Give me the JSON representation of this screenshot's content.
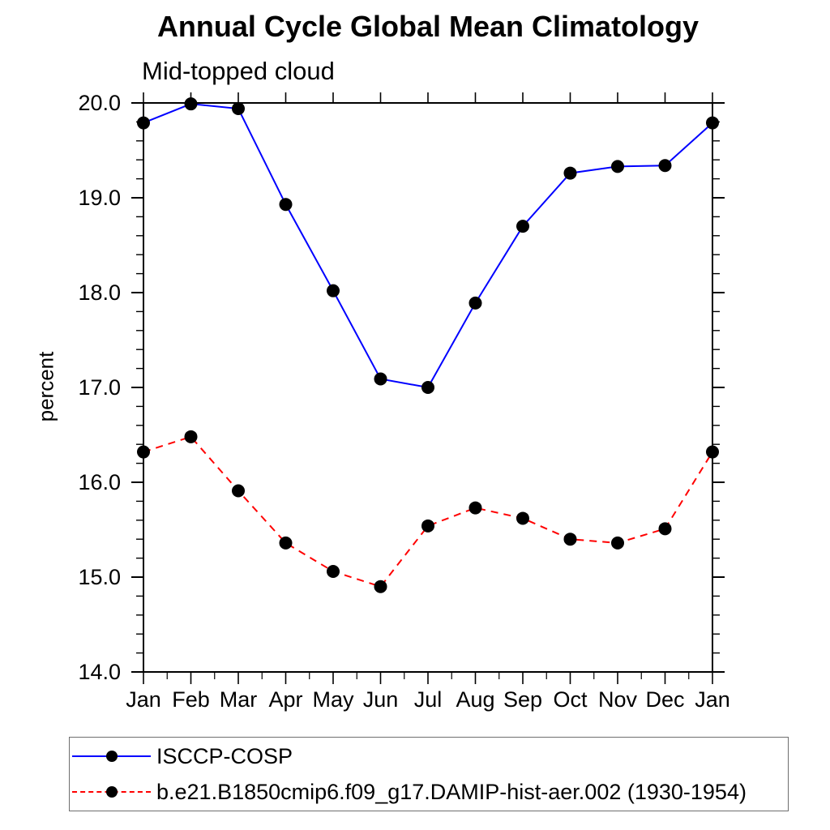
{
  "header": {
    "title": "Annual Cycle Global Mean Climatology",
    "subtitle": "Mid-topped cloud"
  },
  "axes": {
    "ylabel": "percent",
    "ytick_labels": [
      "20.0",
      "19.0",
      "18.0",
      "17.0",
      "16.0",
      "15.0",
      "14.0"
    ],
    "xtick_labels": [
      "Jan",
      "Feb",
      "Mar",
      "Apr",
      "May",
      "Jun",
      "Jul",
      "Aug",
      "Sep",
      "Oct",
      "Nov",
      "Dec",
      "Jan"
    ]
  },
  "legend": {
    "items": [
      {
        "label": "ISCCP-COSP",
        "color": "#0000ff",
        "line_style": "solid",
        "marker_color": "#000000"
      },
      {
        "label": "b.e21.B1850cmip6.f09_g17.DAMIP-hist-aer.002 (1930-1954)",
        "color": "#ff0000",
        "line_style": "dashed",
        "marker_color": "#000000"
      }
    ]
  },
  "chart_data": {
    "type": "line",
    "title": "Annual Cycle Global Mean Climatology",
    "subtitle": "Mid-topped cloud",
    "xlabel": "",
    "ylabel": "percent",
    "categories": [
      "Jan",
      "Feb",
      "Mar",
      "Apr",
      "May",
      "Jun",
      "Jul",
      "Aug",
      "Sep",
      "Oct",
      "Nov",
      "Dec",
      "Jan"
    ],
    "ylim": [
      14.0,
      20.0
    ],
    "yticks": [
      20.0,
      19.0,
      18.0,
      17.0,
      16.0,
      15.0,
      14.0
    ],
    "ytick_labels": [
      "20.0",
      "19.0",
      "18.0",
      "17.0",
      "16.0",
      "15.0",
      "14.0"
    ],
    "y_minor_step": 0.2,
    "x_minor_ticks": "half-month positions, bottom axis only",
    "grid": false,
    "frame": "closed box, ticks outward on all four sides",
    "legend_position": "boxed legend below plot, bottom-left",
    "series": [
      {
        "name": "ISCCP-COSP",
        "color": "#0000ff",
        "line_style": "solid",
        "marker": "filled-circle",
        "marker_color": "#000000",
        "values": [
          19.79,
          19.99,
          19.94,
          18.93,
          18.02,
          17.09,
          17.0,
          17.89,
          18.7,
          19.26,
          19.33,
          19.34,
          19.79
        ]
      },
      {
        "name": "b.e21.B1850cmip6.f09_g17.DAMIP-hist-aer.002 (1930-1954)",
        "color": "#ff0000",
        "line_style": "dashed",
        "marker": "filled-circle",
        "marker_color": "#000000",
        "values": [
          16.32,
          16.48,
          15.91,
          15.36,
          15.06,
          14.9,
          15.54,
          15.73,
          15.62,
          15.4,
          15.36,
          15.51,
          16.32
        ]
      }
    ]
  }
}
